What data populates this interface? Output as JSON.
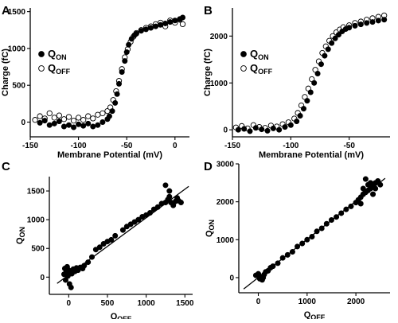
{
  "chart_data": [
    {
      "panel": "A",
      "type": "scatter",
      "xlabel": "Membrane Potential (mV)",
      "ylabel": "Charge (fC)",
      "xlim": [
        -150,
        15
      ],
      "ylim": [
        -200,
        1550
      ],
      "xticks": [
        -150,
        -100,
        -50,
        0
      ],
      "yticks": [
        0,
        500,
        1000,
        1500
      ],
      "x_tick_labels": [
        "-150",
        "-100",
        "-50",
        "0"
      ],
      "y_tick_labels": [
        "0",
        "500",
        "1000",
        "1500"
      ],
      "legend_position": "left",
      "series": [
        {
          "name": "Q_ON",
          "legend_main": "Q",
          "legend_sub": "ON",
          "marker": "filled-circle",
          "points": [
            [
              -140,
              -10
            ],
            [
              -135,
              20
            ],
            [
              -130,
              -40
            ],
            [
              -125,
              -20
            ],
            [
              -120,
              10
            ],
            [
              -115,
              -60
            ],
            [
              -110,
              -40
            ],
            [
              -105,
              -70
            ],
            [
              -100,
              -30
            ],
            [
              -95,
              -50
            ],
            [
              -90,
              -20
            ],
            [
              -85,
              -60
            ],
            [
              -80,
              -40
            ],
            [
              -75,
              0
            ],
            [
              -70,
              40
            ],
            [
              -68,
              80
            ],
            [
              -65,
              150
            ],
            [
              -62,
              260
            ],
            [
              -60,
              380
            ],
            [
              -58,
              520
            ],
            [
              -55,
              680
            ],
            [
              -52,
              830
            ],
            [
              -50,
              950
            ],
            [
              -48,
              1050
            ],
            [
              -45,
              1130
            ],
            [
              -42,
              1180
            ],
            [
              -40,
              1200
            ],
            [
              -35,
              1240
            ],
            [
              -30,
              1260
            ],
            [
              -25,
              1280
            ],
            [
              -20,
              1300
            ],
            [
              -15,
              1320
            ],
            [
              -10,
              1340
            ],
            [
              -5,
              1360
            ],
            [
              0,
              1380
            ],
            [
              5,
              1400
            ],
            [
              8,
              1420
            ]
          ]
        },
        {
          "name": "Q_OFF",
          "legend_main": "Q",
          "legend_sub": "OFF",
          "marker": "open-circle",
          "points": [
            [
              -145,
              30
            ],
            [
              -140,
              80
            ],
            [
              -135,
              50
            ],
            [
              -130,
              120
            ],
            [
              -125,
              60
            ],
            [
              -120,
              90
            ],
            [
              -115,
              40
            ],
            [
              -110,
              70
            ],
            [
              -105,
              20
            ],
            [
              -100,
              60
            ],
            [
              -95,
              30
            ],
            [
              -90,
              80
            ],
            [
              -85,
              50
            ],
            [
              -80,
              100
            ],
            [
              -75,
              120
            ],
            [
              -70,
              150
            ],
            [
              -67,
              200
            ],
            [
              -64,
              300
            ],
            [
              -61,
              420
            ],
            [
              -58,
              560
            ],
            [
              -55,
              720
            ],
            [
              -52,
              880
            ],
            [
              -49,
              990
            ],
            [
              -46,
              1090
            ],
            [
              -43,
              1160
            ],
            [
              -40,
              1210
            ],
            [
              -35,
              1250
            ],
            [
              -30,
              1280
            ],
            [
              -25,
              1300
            ],
            [
              -20,
              1330
            ],
            [
              -15,
              1350
            ],
            [
              -10,
              1300
            ],
            [
              -5,
              1380
            ],
            [
              0,
              1350
            ],
            [
              5,
              1390
            ],
            [
              8,
              1330
            ]
          ]
        }
      ]
    },
    {
      "panel": "B",
      "type": "scatter",
      "xlabel": "Membrane Potential (mV)",
      "ylabel": "Charge (fC)",
      "xlim": [
        -150,
        -15
      ],
      "ylim": [
        -150,
        2600
      ],
      "xticks": [
        -150,
        -100,
        -50
      ],
      "yticks": [
        0,
        1000,
        2000
      ],
      "x_tick_labels": [
        "-150",
        "-100",
        "-50"
      ],
      "y_tick_labels": [
        "0",
        "1000",
        "2000"
      ],
      "legend_position": "left",
      "series": [
        {
          "name": "Q_ON",
          "legend_main": "Q",
          "legend_sub": "ON",
          "marker": "filled-circle",
          "points": [
            [
              -145,
              0
            ],
            [
              -140,
              20
            ],
            [
              -135,
              -30
            ],
            [
              -130,
              40
            ],
            [
              -125,
              10
            ],
            [
              -120,
              -20
            ],
            [
              -115,
              30
            ],
            [
              -110,
              0
            ],
            [
              -105,
              60
            ],
            [
              -100,
              100
            ],
            [
              -95,
              180
            ],
            [
              -92,
              300
            ],
            [
              -89,
              450
            ],
            [
              -86,
              620
            ],
            [
              -83,
              800
            ],
            [
              -80,
              1000
            ],
            [
              -77,
              1200
            ],
            [
              -74,
              1400
            ],
            [
              -71,
              1580
            ],
            [
              -68,
              1720
            ],
            [
              -65,
              1850
            ],
            [
              -62,
              1950
            ],
            [
              -59,
              2030
            ],
            [
              -56,
              2100
            ],
            [
              -53,
              2150
            ],
            [
              -50,
              2180
            ],
            [
              -45,
              2220
            ],
            [
              -40,
              2250
            ],
            [
              -35,
              2280
            ],
            [
              -30,
              2300
            ],
            [
              -25,
              2330
            ],
            [
              -20,
              2350
            ]
          ]
        },
        {
          "name": "Q_OFF",
          "legend_main": "Q",
          "legend_sub": "OFF",
          "marker": "open-circle",
          "points": [
            [
              -147,
              50
            ],
            [
              -142,
              80
            ],
            [
              -137,
              30
            ],
            [
              -132,
              100
            ],
            [
              -127,
              60
            ],
            [
              -122,
              40
            ],
            [
              -117,
              90
            ],
            [
              -112,
              70
            ],
            [
              -107,
              120
            ],
            [
              -102,
              160
            ],
            [
              -97,
              240
            ],
            [
              -94,
              360
            ],
            [
              -91,
              520
            ],
            [
              -88,
              700
            ],
            [
              -85,
              880
            ],
            [
              -82,
              1080
            ],
            [
              -79,
              1280
            ],
            [
              -76,
              1460
            ],
            [
              -73,
              1640
            ],
            [
              -70,
              1780
            ],
            [
              -67,
              1900
            ],
            [
              -64,
              2000
            ],
            [
              -61,
              2080
            ],
            [
              -58,
              2140
            ],
            [
              -55,
              2190
            ],
            [
              -50,
              2230
            ],
            [
              -45,
              2280
            ],
            [
              -40,
              2310
            ],
            [
              -35,
              2350
            ],
            [
              -30,
              2380
            ],
            [
              -25,
              2410
            ],
            [
              -20,
              2440
            ]
          ]
        }
      ]
    },
    {
      "panel": "C",
      "type": "scatter",
      "xlabel": "Q_OFF",
      "xlabel_main": "Q",
      "xlabel_sub": "OFF",
      "ylabel": "Q_ON",
      "ylabel_main": "Q",
      "ylabel_sub": "ON",
      "xlim": [
        -250,
        1600
      ],
      "ylim": [
        -300,
        1750
      ],
      "xticks": [
        0,
        500,
        1000,
        1500
      ],
      "yticks": [
        0,
        500,
        1000,
        1500
      ],
      "x_tick_labels": [
        "0",
        "500",
        "1000",
        "1500"
      ],
      "y_tick_labels": [
        "0",
        "500",
        "1000",
        "1500"
      ],
      "fit_line": [
        [
          -150,
          -110
        ],
        [
          1550,
          1580
        ]
      ],
      "series": [
        {
          "name": "Q_ON vs Q_OFF",
          "marker": "filled-circle",
          "points": [
            [
              -50,
              150
            ],
            [
              -30,
              100
            ],
            [
              -60,
              50
            ],
            [
              -20,
              180
            ],
            [
              0,
              120
            ],
            [
              20,
              80
            ],
            [
              -40,
              -50
            ],
            [
              10,
              -120
            ],
            [
              30,
              -180
            ],
            [
              -10,
              20
            ],
            [
              40,
              60
            ],
            [
              60,
              140
            ],
            [
              80,
              100
            ],
            [
              100,
              160
            ],
            [
              120,
              120
            ],
            [
              150,
              170
            ],
            [
              180,
              150
            ],
            [
              200,
              200
            ],
            [
              250,
              260
            ],
            [
              300,
              350
            ],
            [
              350,
              480
            ],
            [
              400,
              520
            ],
            [
              450,
              580
            ],
            [
              500,
              620
            ],
            [
              550,
              650
            ],
            [
              600,
              720
            ],
            [
              700,
              820
            ],
            [
              750,
              880
            ],
            [
              800,
              920
            ],
            [
              850,
              960
            ],
            [
              900,
              1000
            ],
            [
              950,
              1050
            ],
            [
              1000,
              1080
            ],
            [
              1050,
              1120
            ],
            [
              1100,
              1180
            ],
            [
              1150,
              1220
            ],
            [
              1200,
              1280
            ],
            [
              1250,
              1300
            ],
            [
              1280,
              1350
            ],
            [
              1300,
              1400
            ],
            [
              1320,
              1300
            ],
            [
              1350,
              1250
            ],
            [
              1380,
              1320
            ],
            [
              1400,
              1380
            ],
            [
              1420,
              1330
            ],
            [
              1450,
              1300
            ],
            [
              1300,
              1500
            ],
            [
              1250,
              1600
            ]
          ]
        }
      ]
    },
    {
      "panel": "D",
      "type": "scatter",
      "xlabel": "Q_OFF",
      "xlabel_main": "Q",
      "xlabel_sub": "OFF",
      "ylabel": "Q_ON",
      "ylabel_main": "Q",
      "ylabel_sub": "ON",
      "xlim": [
        -400,
        2700
      ],
      "ylim": [
        -400,
        3000
      ],
      "xticks": [
        0,
        1000,
        2000
      ],
      "yticks": [
        0,
        1000,
        2000,
        3000
      ],
      "x_tick_labels": [
        "0",
        "1000",
        "2000"
      ],
      "y_tick_labels": [
        "0",
        "1000",
        "2000",
        "3000"
      ],
      "fit_line": [
        [
          -300,
          -300
        ],
        [
          2600,
          2620
        ]
      ],
      "series": [
        {
          "name": "Q_ON vs Q_OFF",
          "marker": "filled-circle",
          "points": [
            [
              -50,
              60
            ],
            [
              0,
              100
            ],
            [
              50,
              20
            ],
            [
              80,
              -60
            ],
            [
              100,
              0
            ],
            [
              120,
              80
            ],
            [
              30,
              -30
            ],
            [
              150,
              150
            ],
            [
              200,
              180
            ],
            [
              250,
              260
            ],
            [
              300,
              300
            ],
            [
              400,
              380
            ],
            [
              500,
              520
            ],
            [
              600,
              600
            ],
            [
              700,
              680
            ],
            [
              800,
              820
            ],
            [
              900,
              900
            ],
            [
              1000,
              1000
            ],
            [
              1100,
              1080
            ],
            [
              1200,
              1220
            ],
            [
              1300,
              1300
            ],
            [
              1400,
              1420
            ],
            [
              1500,
              1520
            ],
            [
              1600,
              1600
            ],
            [
              1700,
              1700
            ],
            [
              1800,
              1800
            ],
            [
              1900,
              1880
            ],
            [
              2000,
              1980
            ],
            [
              2050,
              2050
            ],
            [
              2100,
              2120
            ],
            [
              2150,
              2200
            ],
            [
              2200,
              2250
            ],
            [
              2250,
              2300
            ],
            [
              2300,
              2350
            ],
            [
              2350,
              2400
            ],
            [
              2400,
              2500
            ],
            [
              2450,
              2550
            ],
            [
              2200,
              2600
            ],
            [
              2300,
              2500
            ],
            [
              2400,
              2350
            ],
            [
              2100,
              1950
            ],
            [
              2500,
              2450
            ],
            [
              2350,
              2200
            ],
            [
              2150,
              2350
            ],
            [
              2250,
              2450
            ]
          ]
        }
      ]
    }
  ]
}
